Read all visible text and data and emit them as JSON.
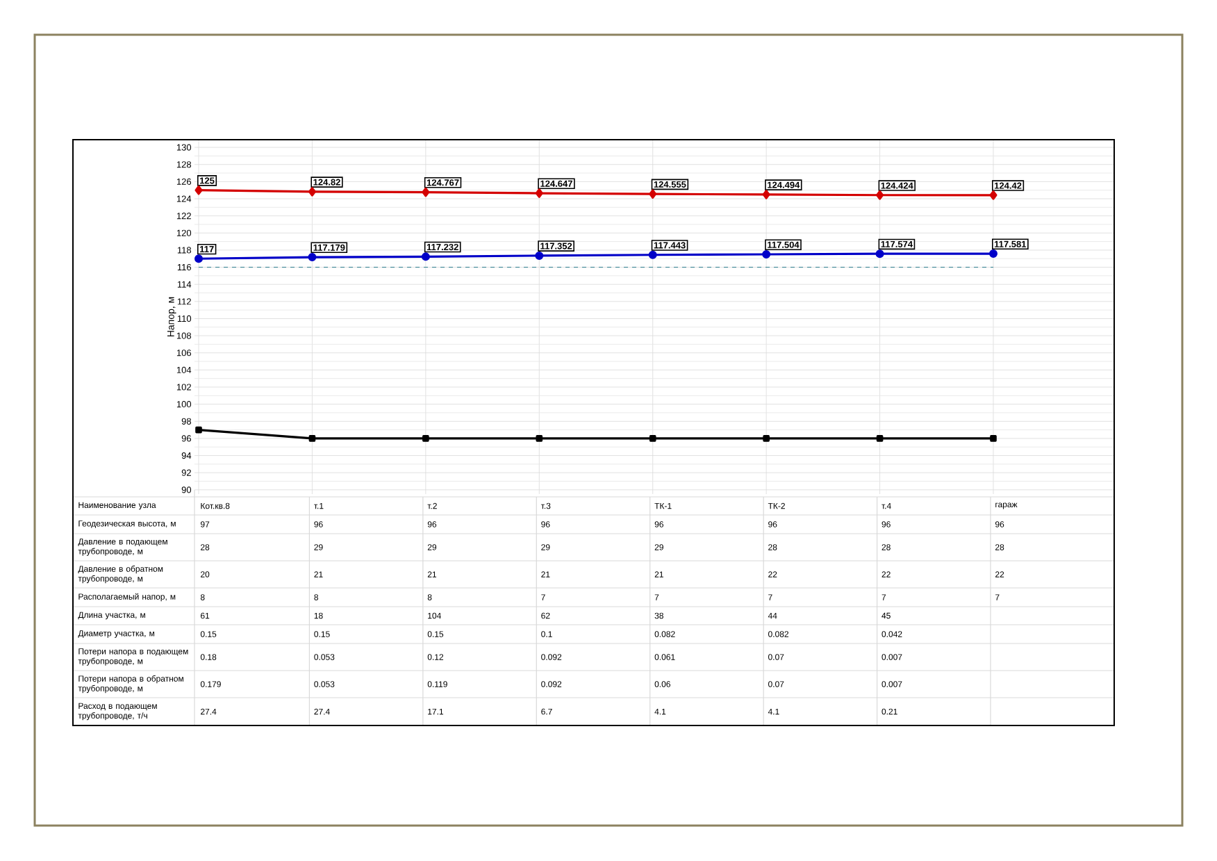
{
  "chart_data": {
    "type": "line",
    "ylabel": "Напор, м",
    "xlabel": "Наименование узла",
    "categories": [
      "Кот.кв.8",
      "т.1",
      "т.2",
      "т.3",
      "ТК-1",
      "ТК-2",
      "т.4",
      "гараж"
    ],
    "series": [
      {
        "color": "#d40000",
        "marker": "diamond",
        "values": [
          125,
          124.82,
          124.767,
          124.647,
          124.555,
          124.494,
          124.424,
          124.42
        ],
        "value_labels": [
          "125",
          "124.82",
          "124.767",
          "124.647",
          "124.555",
          "124.494",
          "124.424",
          "124.42"
        ]
      },
      {
        "color": "#0000c8",
        "marker": "circle",
        "values": [
          117,
          117.179,
          117.232,
          117.352,
          117.443,
          117.504,
          117.574,
          117.581
        ],
        "value_labels": [
          "117",
          "117.179",
          "117.232",
          "117.352",
          "117.443",
          "117.504",
          "117.574",
          "117.581"
        ]
      },
      {
        "color": "#000000",
        "marker": "square",
        "values": [
          97,
          96,
          96,
          96,
          96,
          96,
          96,
          96
        ]
      }
    ],
    "ylim": [
      89.5,
      130.9
    ],
    "yticks": [
      90,
      92,
      94,
      96,
      98,
      100,
      102,
      104,
      106,
      108,
      110,
      112,
      114,
      116,
      118,
      120,
      122,
      124,
      126,
      128,
      130
    ],
    "grid": true,
    "ref_lines": [
      {
        "axis": "y",
        "value": 116,
        "color": "#2e7d8c",
        "line_style": "dashed"
      }
    ],
    "annotations": [
      "Геодезическая высота, м",
      "97",
      "96",
      "96",
      "96",
      "96",
      "96",
      "96",
      "96",
      "Давление в подающем трубопроводе, м",
      "28",
      "29",
      "29",
      "29",
      "29",
      "28",
      "28",
      "28",
      "Давление в обратном трубопроводе, м",
      "20",
      "21",
      "21",
      "21",
      "21",
      "22",
      "22",
      "22",
      "Располагаемый напор, м",
      "8",
      "8",
      "8",
      "7",
      "7",
      "7",
      "7",
      "7",
      "Длина участка, м",
      "61",
      "18",
      "104",
      "62",
      "38",
      "44",
      "45",
      "Диаметр участка, м",
      "0.15",
      "0.15",
      "0.15",
      "0.1",
      "0.082",
      "0.082",
      "0.042",
      "Потери напора в подающем трубопроводе, м",
      "0.18",
      "0.053",
      "0.12",
      "0.092",
      "0.061",
      "0.07",
      "0.007",
      "Потери напора в обратном трубопроводе, м",
      "0.179",
      "0.053",
      "0.119",
      "0.092",
      "0.06",
      "0.07",
      "0.007",
      "Расход в подающем трубопроводе, т/ч",
      "27.4",
      "27.4",
      "17.1",
      "6.7",
      "4.1",
      "4.1",
      "0.21"
    ]
  }
}
